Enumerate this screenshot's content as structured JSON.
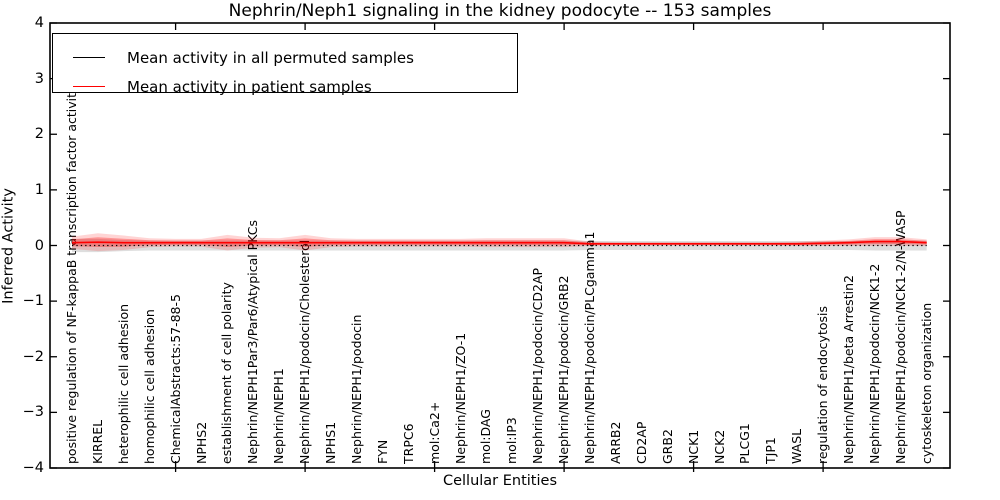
{
  "legend": {
    "entries": [
      {
        "label": "Mean activity in all permuted samples",
        "color": "#000000"
      },
      {
        "label": "Mean activity in patient samples",
        "color": "#ff0000"
      }
    ],
    "position": "upper left"
  },
  "axes": {
    "ytick_labels": [
      "4",
      "3",
      "2",
      "1",
      "0",
      "−1",
      "−2",
      "−3",
      "−4"
    ]
  },
  "chart_data": {
    "type": "line",
    "title": "Nephrin/Neph1 signaling in the kidney podocyte -- 153 samples",
    "xlabel": "Cellular Entities",
    "ylabel": "Inferred Activity",
    "ylim": [
      -4,
      4
    ],
    "yticks": [
      -4,
      -3,
      -2,
      -1,
      0,
      1,
      2,
      3,
      4
    ],
    "grid": false,
    "legend_position": "upper left",
    "x_major_tick_indices": [
      4,
      9,
      14,
      19,
      24,
      29
    ],
    "categories": [
      "positive regulation of NF-kappaB transcription factor activity",
      "KIRREL",
      "heterophilic cell adhesion",
      "homophilic cell adhesion",
      "ChemicalAbstracts:57-88-5",
      "NPHS2",
      "establishment of cell polarity",
      "Nephrin/NEPH1Par3/Par6/Atypical PKCs",
      "Nephrin/NEPH1",
      "Nephrin/NEPH1/podocin/Cholesterol",
      "NPHS1",
      "Nephrin/NEPH1/podocin",
      "FYN",
      "TRPC6",
      "mol:Ca2+",
      "Nephrin/NEPH1/ZO-1",
      "mol:DAG",
      "mol:IP3",
      "Nephrin/NEPH1/podocin/CD2AP",
      "Nephrin/NEPH1/podocin/GRB2",
      "Nephrin/NEPH1/podocin/PLCgamma1",
      "ARRB2",
      "CD2AP",
      "GRB2",
      "NCK1",
      "NCK2",
      "PLCG1",
      "TJP1",
      "WASL",
      "regulation of endocytosis",
      "Nephrin/NEPH1/beta Arrestin2",
      "Nephrin/NEPH1/podocin/NCK1-2",
      "Nephrin/NEPH1/podocin/NCK1-2/N-WASP",
      "cytoskeleton organization"
    ],
    "series": [
      {
        "name": "Mean activity in all permuted samples",
        "color": "#000000",
        "linestyle": "dotted",
        "values": [
          0,
          0,
          0,
          0,
          0,
          0,
          0,
          0,
          0,
          0,
          0,
          0,
          0,
          0,
          0,
          0,
          0,
          0,
          0,
          0,
          0,
          0,
          0,
          0,
          0,
          0,
          0,
          0,
          0,
          0,
          0,
          0,
          0,
          0
        ],
        "band_halfwidth": [
          0.12,
          0.12,
          0.1,
          0.09,
          0.09,
          0.09,
          0.09,
          0.09,
          0.09,
          0.09,
          0.09,
          0.09,
          0.09,
          0.09,
          0.09,
          0.09,
          0.09,
          0.09,
          0.09,
          0.09,
          0.08,
          0.08,
          0.08,
          0.08,
          0.08,
          0.08,
          0.08,
          0.08,
          0.08,
          0.08,
          0.08,
          0.09,
          0.09,
          0.09
        ],
        "band_color": "#bbbbbb"
      },
      {
        "name": "Mean activity in patient samples",
        "color": "#ff0000",
        "linestyle": "solid",
        "values": [
          0.05,
          0.06,
          0.05,
          0.05,
          0.05,
          0.05,
          0.05,
          0.05,
          0.05,
          0.05,
          0.05,
          0.05,
          0.05,
          0.05,
          0.05,
          0.05,
          0.05,
          0.05,
          0.05,
          0.05,
          0.03,
          0.03,
          0.03,
          0.03,
          0.03,
          0.03,
          0.03,
          0.03,
          0.03,
          0.04,
          0.05,
          0.07,
          0.07,
          0.05
        ],
        "band_halfwidth": [
          0.11,
          0.16,
          0.13,
          0.08,
          0.07,
          0.07,
          0.14,
          0.09,
          0.08,
          0.14,
          0.08,
          0.07,
          0.07,
          0.07,
          0.07,
          0.07,
          0.08,
          0.08,
          0.08,
          0.08,
          0.04,
          0.03,
          0.03,
          0.03,
          0.03,
          0.03,
          0.03,
          0.03,
          0.04,
          0.05,
          0.06,
          0.08,
          0.08,
          0.06
        ],
        "band_color": "#ff9999"
      }
    ]
  }
}
